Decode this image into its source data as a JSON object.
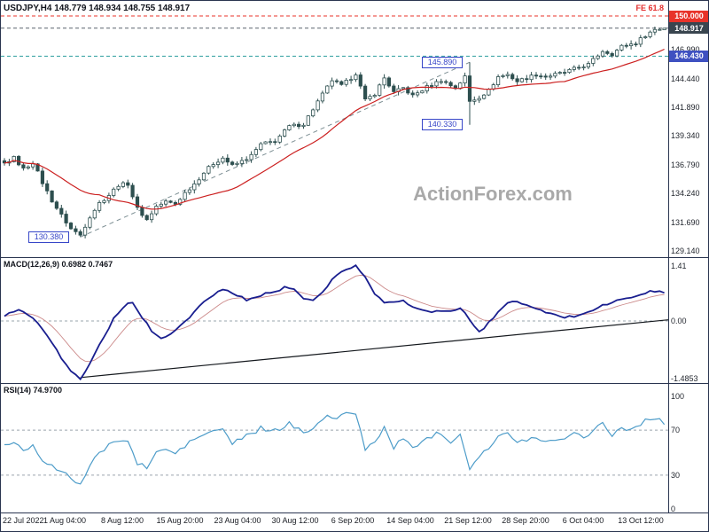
{
  "header": {
    "symbol_title": "USDJPY,H4 148.779 148.934 148.755 148.917",
    "fib_label": "FE 61.8"
  },
  "watermark": "ActionForex.com",
  "indicator_titles": {
    "macd": "MACD(12,26,9) 0.6982 0.7467",
    "rsi": "RSI(14) 74.9700"
  },
  "colors": {
    "bull_fill": "#ffffff",
    "bear_fill": "#2d4f4f",
    "candle_stroke": "#2d4f4f",
    "ma_line": "#cc2020",
    "trend_dashed": "#7d8f94",
    "macd_line": "#191e8f",
    "macd_signal": "#cc8a8a",
    "macd_trend": "#14181d",
    "rsi_line": "#4d9cc9",
    "grid_dashed": "#9aa4ae",
    "border": "#2a3550",
    "text": "#23272f",
    "annotation": "#3746c8",
    "watermark_color": "#a9a9a9"
  },
  "price_axis": {
    "plain": [
      {
        "label": "146.990",
        "price": 146.99
      },
      {
        "label": "144.440",
        "price": 144.44
      },
      {
        "label": "141.890",
        "price": 141.89
      },
      {
        "label": "139.340",
        "price": 139.34
      },
      {
        "label": "136.790",
        "price": 136.79
      },
      {
        "label": "134.240",
        "price": 134.24
      },
      {
        "label": "131.690",
        "price": 131.69
      },
      {
        "label": "129.140",
        "price": 129.14
      }
    ],
    "tags": [
      {
        "label": "150.000",
        "price": 150.0,
        "bg": "#e8332a"
      },
      {
        "label": "148.917",
        "price": 148.917,
        "bg": "#39454f"
      },
      {
        "label": "146.430",
        "price": 146.43,
        "bg": "#3f51c1"
      }
    ]
  },
  "annotations": [
    {
      "label": "145.890",
      "price": 145.89,
      "x_right": 521,
      "width": 46
    },
    {
      "label": "140.330",
      "price": 140.33,
      "x_right": 521,
      "width": 46
    },
    {
      "label": "130.380",
      "price": 130.38,
      "x_right": 77,
      "width": 46
    }
  ],
  "macd_axis": [
    {
      "label": "1.41",
      "value": 1.41
    },
    {
      "label": "0.00",
      "value": 0.0
    },
    {
      "label": "-1.4853",
      "value": -1.4853
    }
  ],
  "rsi_axis": [
    {
      "label": "100",
      "value": 100
    },
    {
      "label": "70",
      "value": 70
    },
    {
      "label": "30",
      "value": 30
    },
    {
      "label": "0",
      "value": 0
    }
  ],
  "x_axis": {
    "labels": [
      "22 Jul 2022",
      "1 Aug 04:00",
      "8 Aug 12:00",
      "15 Aug 20:00",
      "23 Aug 04:00",
      "30 Aug 12:00",
      "6 Sep 20:00",
      "14 Sep 04:00",
      "21 Sep 12:00",
      "28 Sep 20:00",
      "6 Oct 04:00",
      "13 Oct 12:00"
    ]
  },
  "chart_data": [
    {
      "type": "candlestick",
      "symbol": "USDJPY",
      "timeframe": "H4",
      "current_ohlc": {
        "open": 148.779,
        "high": 148.934,
        "low": 148.755,
        "close": 148.917
      },
      "y_range": [
        128.7,
        150.6
      ],
      "key_levels": {
        "fib_extension_target": 150.0,
        "current_price": 148.917,
        "support_resistance": 146.43,
        "spike_high": 145.89,
        "spike_low": 140.33,
        "trend_low": 130.38
      },
      "levels": [
        {
          "price": 150.0,
          "color": "#e8332a"
        },
        {
          "price": 148.917,
          "color": "#5a646e"
        },
        {
          "price": 146.43,
          "color": "#2e9e9e"
        }
      ],
      "trendline": {
        "from": [
          16,
          130.38
        ],
        "to": [
          98,
          145.89
        ]
      },
      "ma_period": 21,
      "num_candles": 140,
      "close_anchors": [
        [
          0,
          136.9
        ],
        [
          2,
          137.4
        ],
        [
          4,
          136.4
        ],
        [
          6,
          137.0
        ],
        [
          8,
          135.2
        ],
        [
          10,
          133.6
        ],
        [
          12,
          132.3
        ],
        [
          14,
          131.1
        ],
        [
          16,
          130.55
        ],
        [
          18,
          132.2
        ],
        [
          20,
          133.4
        ],
        [
          22,
          134.1
        ],
        [
          24,
          135.0
        ],
        [
          26,
          135.1
        ],
        [
          28,
          132.9
        ],
        [
          30,
          131.9
        ],
        [
          32,
          133.1
        ],
        [
          34,
          133.5
        ],
        [
          36,
          133.3
        ],
        [
          38,
          134.3
        ],
        [
          40,
          135.1
        ],
        [
          42,
          136.1
        ],
        [
          44,
          136.9
        ],
        [
          46,
          137.4
        ],
        [
          48,
          136.7
        ],
        [
          50,
          137.1
        ],
        [
          52,
          137.6
        ],
        [
          54,
          138.6
        ],
        [
          57,
          138.9
        ],
        [
          60,
          140.2
        ],
        [
          63,
          140.4
        ],
        [
          66,
          142.4
        ],
        [
          69,
          144.3
        ],
        [
          71,
          143.8
        ],
        [
          73,
          144.5
        ],
        [
          74,
          144.9
        ],
        [
          76,
          142.5
        ],
        [
          78,
          143.1
        ],
        [
          80,
          144.5
        ],
        [
          82,
          143.2
        ],
        [
          84,
          143.6
        ],
        [
          86,
          142.9
        ],
        [
          89,
          143.7
        ],
        [
          92,
          144.3
        ],
        [
          95,
          143.6
        ],
        [
          97,
          144.6
        ],
        [
          98,
          142.4
        ],
        [
          100,
          142.8
        ],
        [
          102,
          143.4
        ],
        [
          104,
          144.6
        ],
        [
          106,
          144.8
        ],
        [
          108,
          144.2
        ],
        [
          110,
          144.5
        ],
        [
          112,
          144.8
        ],
        [
          114,
          144.6
        ],
        [
          116,
          144.8
        ],
        [
          118,
          145.0
        ],
        [
          120,
          145.3
        ],
        [
          123,
          145.7
        ],
        [
          126,
          146.9
        ],
        [
          128,
          146.6
        ],
        [
          130,
          147.3
        ],
        [
          133,
          147.6
        ],
        [
          135,
          148.3
        ],
        [
          137,
          148.8
        ],
        [
          139,
          148.917
        ]
      ],
      "candle_overrides": [
        {
          "i": 16,
          "low": 130.38
        },
        {
          "i": 98,
          "high": 145.89,
          "low": 140.33
        },
        {
          "i": 139,
          "open": 148.779,
          "high": 148.934,
          "low": 148.755,
          "close": 148.917
        }
      ]
    },
    {
      "type": "line",
      "name": "MACD(12,26,9)",
      "macd_value": 0.6982,
      "signal_value": 0.7467,
      "y_range": [
        -1.4853,
        1.41
      ],
      "zero_line": 0.0,
      "trendline": {
        "from": [
          16,
          -1.45
        ],
        "to": [
          140,
          0.03
        ]
      },
      "anchors": [
        [
          0,
          0.15
        ],
        [
          3,
          0.3
        ],
        [
          6,
          0.1
        ],
        [
          9,
          -0.35
        ],
        [
          12,
          -0.95
        ],
        [
          14,
          -1.3
        ],
        [
          16,
          -1.4853
        ],
        [
          18,
          -1.1
        ],
        [
          20,
          -0.6
        ],
        [
          23,
          0.05
        ],
        [
          25,
          0.35
        ],
        [
          27,
          0.5
        ],
        [
          29,
          0.1
        ],
        [
          31,
          -0.25
        ],
        [
          33,
          -0.45
        ],
        [
          35,
          -0.35
        ],
        [
          37,
          -0.15
        ],
        [
          39,
          0.1
        ],
        [
          41,
          0.35
        ],
        [
          43,
          0.6
        ],
        [
          45,
          0.75
        ],
        [
          47,
          0.8
        ],
        [
          49,
          0.65
        ],
        [
          51,
          0.55
        ],
        [
          53,
          0.6
        ],
        [
          55,
          0.7
        ],
        [
          57,
          0.75
        ],
        [
          59,
          0.85
        ],
        [
          61,
          0.8
        ],
        [
          63,
          0.6
        ],
        [
          65,
          0.55
        ],
        [
          67,
          0.75
        ],
        [
          69,
          1.05
        ],
        [
          71,
          1.25
        ],
        [
          73,
          1.38
        ],
        [
          74,
          1.41
        ],
        [
          76,
          1.15
        ],
        [
          78,
          0.7
        ],
        [
          80,
          0.45
        ],
        [
          82,
          0.5
        ],
        [
          84,
          0.55
        ],
        [
          86,
          0.35
        ],
        [
          88,
          0.28
        ],
        [
          90,
          0.22
        ],
        [
          92,
          0.25
        ],
        [
          94,
          0.28
        ],
        [
          96,
          0.32
        ],
        [
          98,
          0.05
        ],
        [
          100,
          -0.3
        ],
        [
          102,
          -0.05
        ],
        [
          104,
          0.25
        ],
        [
          106,
          0.45
        ],
        [
          108,
          0.5
        ],
        [
          110,
          0.4
        ],
        [
          112,
          0.3
        ],
        [
          114,
          0.22
        ],
        [
          116,
          0.15
        ],
        [
          118,
          0.1
        ],
        [
          120,
          0.12
        ],
        [
          122,
          0.2
        ],
        [
          124,
          0.28
        ],
        [
          126,
          0.4
        ],
        [
          128,
          0.48
        ],
        [
          130,
          0.55
        ],
        [
          132,
          0.6
        ],
        [
          134,
          0.68
        ],
        [
          136,
          0.75
        ],
        [
          138,
          0.78
        ],
        [
          139,
          0.6982
        ]
      ]
    },
    {
      "type": "line",
      "name": "RSI(14)",
      "value": 74.97,
      "y_range": [
        0,
        100
      ],
      "levels": [
        70,
        30
      ],
      "anchors": [
        [
          0,
          56
        ],
        [
          2,
          60
        ],
        [
          4,
          52
        ],
        [
          6,
          57
        ],
        [
          8,
          44
        ],
        [
          10,
          38
        ],
        [
          12,
          32
        ],
        [
          14,
          28
        ],
        [
          16,
          22
        ],
        [
          18,
          38
        ],
        [
          20,
          50
        ],
        [
          22,
          56
        ],
        [
          24,
          62
        ],
        [
          26,
          60
        ],
        [
          28,
          40
        ],
        [
          30,
          37
        ],
        [
          32,
          50
        ],
        [
          34,
          53
        ],
        [
          36,
          49
        ],
        [
          38,
          56
        ],
        [
          40,
          62
        ],
        [
          42,
          66
        ],
        [
          44,
          69
        ],
        [
          46,
          71
        ],
        [
          48,
          58
        ],
        [
          50,
          63
        ],
        [
          52,
          66
        ],
        [
          54,
          72
        ],
        [
          56,
          68
        ],
        [
          58,
          71
        ],
        [
          60,
          76
        ],
        [
          62,
          70
        ],
        [
          64,
          68
        ],
        [
          66,
          78
        ],
        [
          68,
          83
        ],
        [
          70,
          80
        ],
        [
          72,
          84
        ],
        [
          74,
          86
        ],
        [
          76,
          52
        ],
        [
          78,
          60
        ],
        [
          80,
          72
        ],
        [
          82,
          55
        ],
        [
          84,
          62
        ],
        [
          86,
          55
        ],
        [
          88,
          60
        ],
        [
          90,
          65
        ],
        [
          92,
          68
        ],
        [
          94,
          60
        ],
        [
          96,
          67
        ],
        [
          98,
          36
        ],
        [
          100,
          48
        ],
        [
          102,
          54
        ],
        [
          104,
          64
        ],
        [
          106,
          67
        ],
        [
          108,
          58
        ],
        [
          110,
          62
        ],
        [
          112,
          64
        ],
        [
          114,
          59
        ],
        [
          116,
          62
        ],
        [
          118,
          64
        ],
        [
          120,
          67
        ],
        [
          122,
          64
        ],
        [
          124,
          70
        ],
        [
          126,
          77
        ],
        [
          128,
          65
        ],
        [
          130,
          73
        ],
        [
          132,
          70
        ],
        [
          134,
          76
        ],
        [
          136,
          80
        ],
        [
          138,
          82
        ],
        [
          139,
          74.97
        ]
      ]
    }
  ]
}
